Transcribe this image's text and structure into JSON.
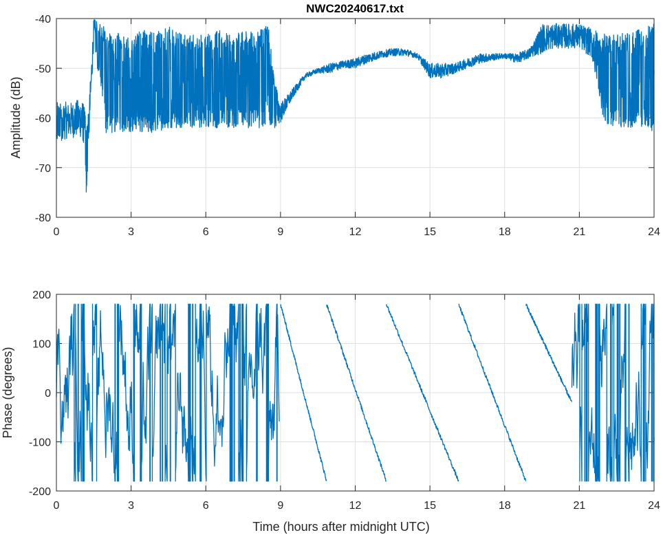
{
  "chart_data": [
    {
      "type": "line",
      "title": "NWC20240617.txt",
      "xlabel": "",
      "ylabel": "Amplitude (dB)",
      "xlim": [
        0,
        24
      ],
      "ylim": [
        -80,
        -40
      ],
      "xticks": [
        0,
        3,
        6,
        9,
        12,
        15,
        18,
        21,
        24
      ],
      "yticks": [
        -80,
        -70,
        -60,
        -50,
        -40
      ],
      "grid": true,
      "color": "#0072BD",
      "series": [
        {
          "name": "Amplitude",
          "representation": "envelope (min/max per time sample, dB)",
          "t": [
            0,
            0.5,
            1,
            1.15,
            1.2,
            1.3,
            1.5,
            2,
            2.5,
            3,
            3.5,
            4,
            4.5,
            5,
            5.5,
            6,
            6.5,
            7,
            7.5,
            8,
            8.5,
            8.8,
            9,
            9.5,
            10,
            10.5,
            11,
            11.5,
            12,
            12.5,
            13,
            13.5,
            14,
            14.5,
            15,
            15.5,
            16,
            16.5,
            17,
            17.5,
            18,
            18.5,
            19,
            19.5,
            20,
            20.5,
            21,
            21.5,
            22,
            22.5,
            23,
            23.5,
            24
          ],
          "max": [
            -56,
            -57,
            -56,
            -58,
            -62,
            -58,
            -40,
            -42,
            -43,
            -44,
            -42,
            -43,
            -41,
            -43,
            -43,
            -43,
            -42,
            -43,
            -42,
            -43,
            -41,
            -53,
            -57,
            -54,
            -51,
            -50,
            -49,
            -48.5,
            -48,
            -47,
            -46.5,
            -46,
            -46,
            -47,
            -49,
            -49,
            -49,
            -48,
            -47,
            -47,
            -47,
            -47,
            -46,
            -41,
            -41,
            -41,
            -41,
            -42,
            -43,
            -43,
            -43,
            -42,
            -41
          ],
          "min": [
            -65,
            -64,
            -64,
            -66,
            -76,
            -66,
            -45,
            -63,
            -63,
            -63,
            -63,
            -63,
            -62,
            -62,
            -62,
            -62,
            -62,
            -62,
            -62,
            -62,
            -62,
            -62,
            -61,
            -56,
            -52,
            -51,
            -51,
            -50,
            -50,
            -49,
            -48,
            -47.5,
            -47.5,
            -48,
            -52,
            -52,
            -51,
            -50,
            -49,
            -48.5,
            -48,
            -49,
            -48,
            -47,
            -46,
            -46,
            -46,
            -48,
            -61,
            -62,
            -62,
            -62,
            -63
          ]
        }
      ]
    },
    {
      "type": "line",
      "title": "",
      "xlabel": "Time (hours after midnight UTC)",
      "ylabel": "Phase (degrees)",
      "xlim": [
        0,
        24
      ],
      "ylim": [
        -200,
        200
      ],
      "xticks": [
        0,
        3,
        6,
        9,
        12,
        15,
        18,
        21,
        24
      ],
      "yticks": [
        -200,
        -100,
        0,
        100,
        200
      ],
      "grid": true,
      "color": "#0072BD",
      "series": [
        {
          "name": "Phase",
          "representation": "piecewise: wrapped noisy regions and linear phase ramps (degrees)",
          "segments": [
            {
              "kind": "noisy-wrapped",
              "t0": 0,
              "t1": 8.95,
              "range": [
                -180,
                180
              ]
            },
            {
              "kind": "ramp",
              "t0": 9.0,
              "t1": 10.85,
              "from": 180,
              "to": -180
            },
            {
              "kind": "ramp",
              "t0": 10.85,
              "t1": 13.25,
              "from": 180,
              "to": -180
            },
            {
              "kind": "ramp",
              "t0": 13.25,
              "t1": 16.15,
              "from": 180,
              "to": -180
            },
            {
              "kind": "ramp",
              "t0": 16.15,
              "t1": 18.85,
              "from": 180,
              "to": -180
            },
            {
              "kind": "ramp",
              "t0": 18.85,
              "t1": 20.7,
              "from": 180,
              "to": -20
            },
            {
              "kind": "noisy-wrapped",
              "t0": 20.7,
              "t1": 24,
              "range": [
                -180,
                180
              ]
            }
          ]
        }
      ]
    }
  ]
}
